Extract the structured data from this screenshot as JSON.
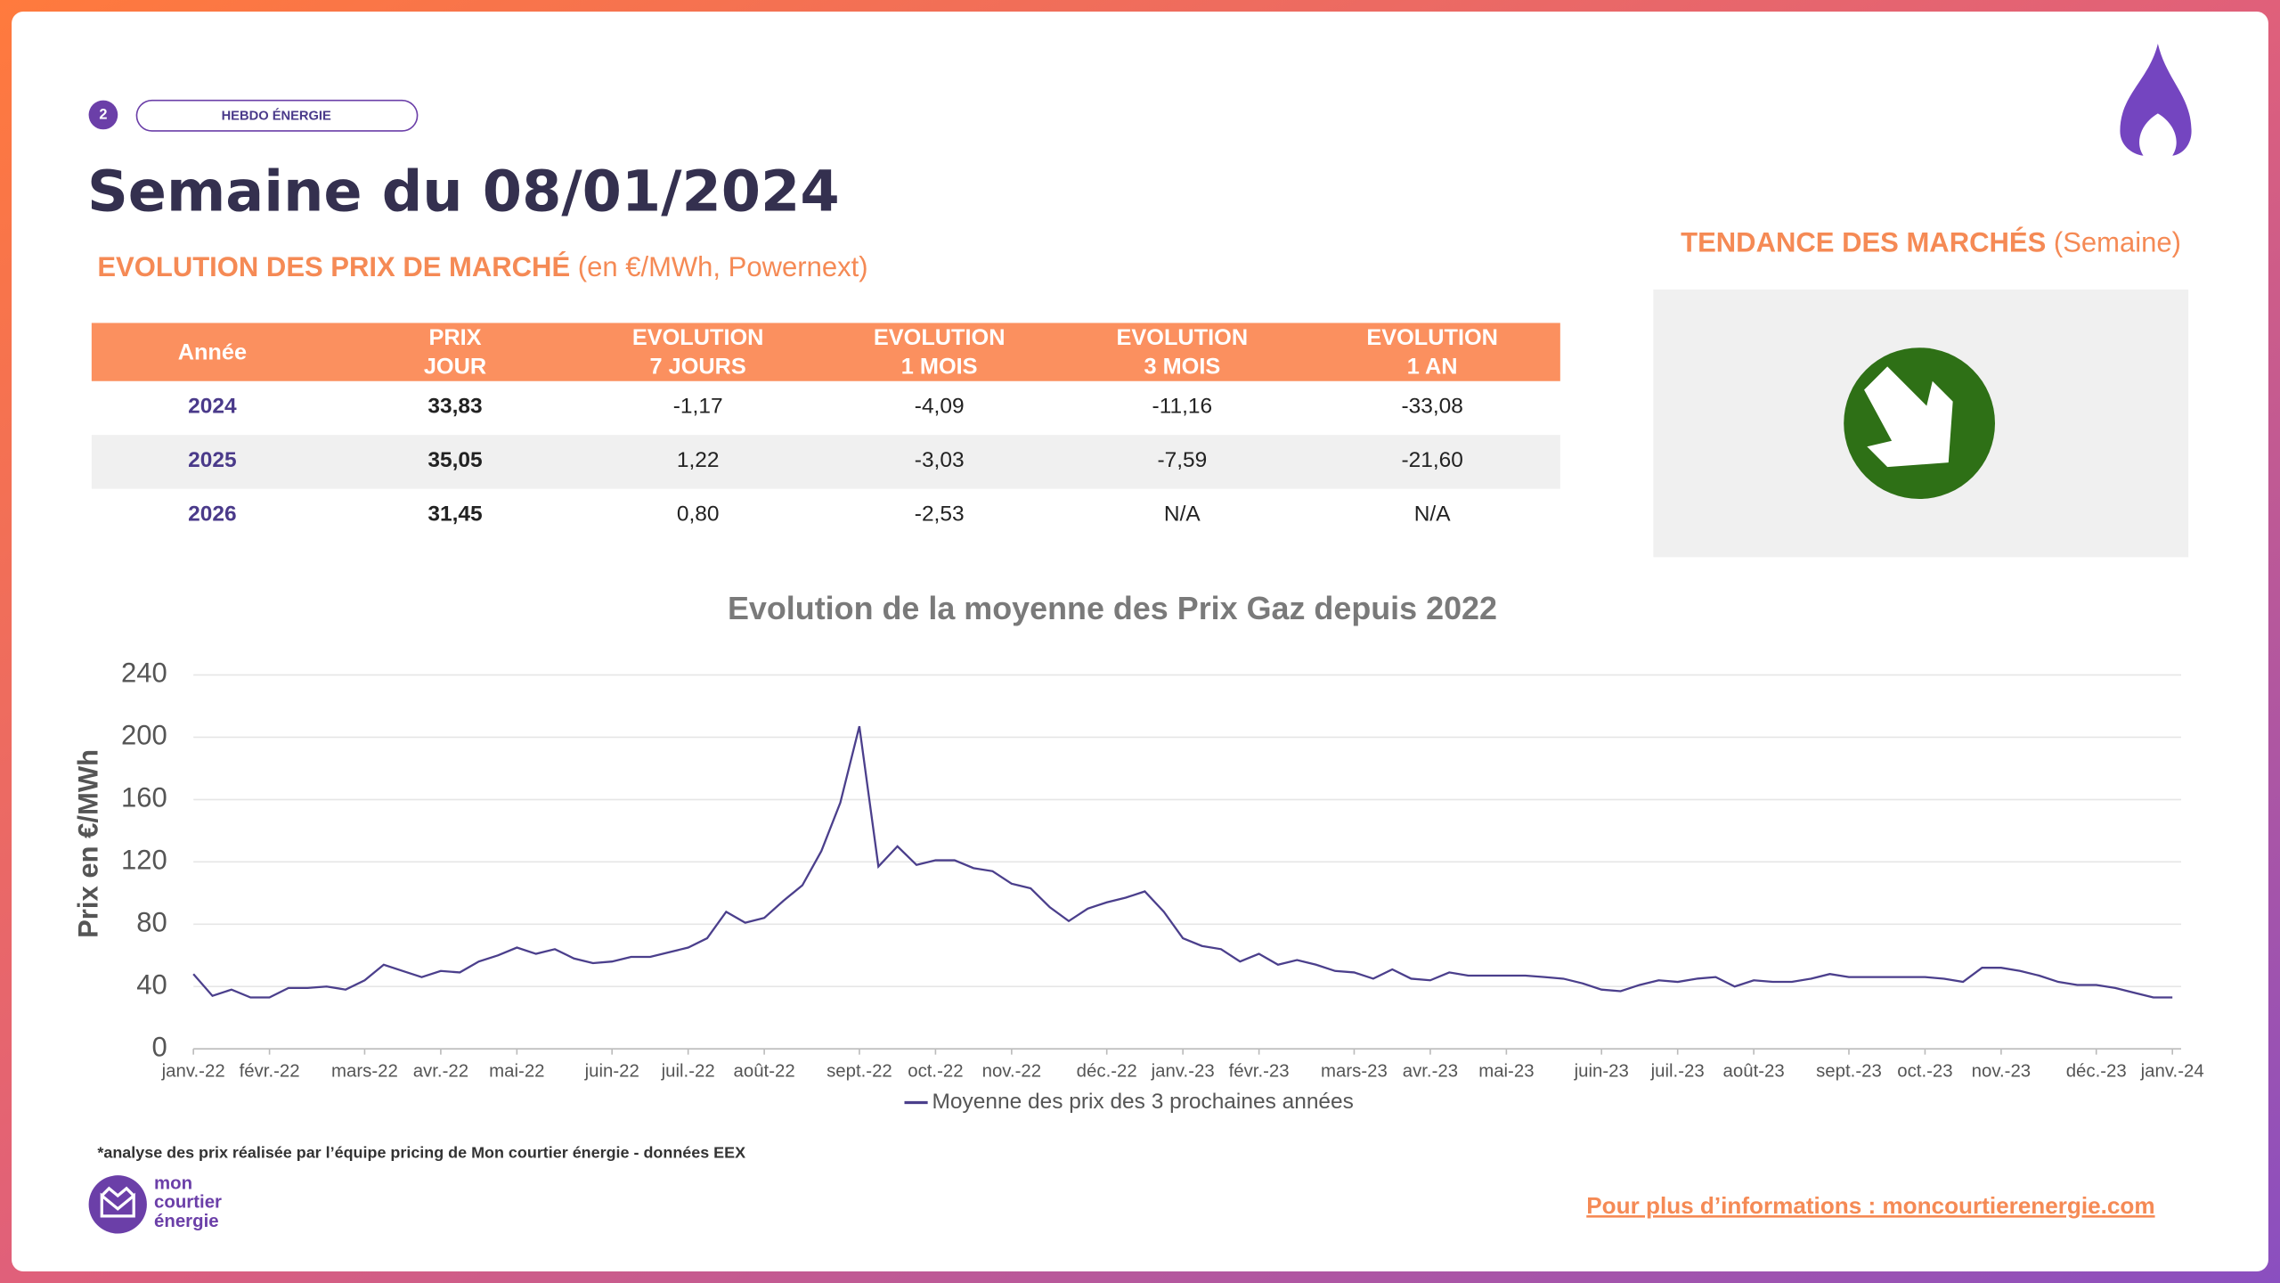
{
  "header": {
    "page_number": "2",
    "tag": "HEBDO ÉNERGIE",
    "title": "Semaine du 08/01/2024"
  },
  "prices": {
    "title": "EVOLUTION DES PRIX DE MARCHÉ",
    "subtitle": "(en €/MWh, Powernext)",
    "table": {
      "columns": [
        [
          "Année"
        ],
        [
          "PRIX",
          "JOUR"
        ],
        [
          "EVOLUTION",
          "7 JOURS"
        ],
        [
          "EVOLUTION",
          "1 MOIS"
        ],
        [
          "EVOLUTION",
          "3 MOIS"
        ],
        [
          "EVOLUTION",
          "1 AN"
        ]
      ],
      "rows": [
        [
          "2024",
          "33,83",
          "-1,17",
          "-4,09",
          "-11,16",
          "-33,08"
        ],
        [
          "2025",
          "35,05",
          "1,22",
          "-3,03",
          "-7,59",
          "-21,60"
        ],
        [
          "2026",
          "31,45",
          "0,80",
          "-2,53",
          "N/A",
          "N/A"
        ]
      ]
    }
  },
  "trend": {
    "title": "TENDANCE DES MARCHÉS",
    "subtitle": "(Semaine)"
  },
  "chart_data": {
    "type": "line",
    "title": "Evolution de la moyenne des Prix Gaz depuis 2022",
    "ylabel": "Prix en €/MWh",
    "categories": [
      "janv.-22",
      null,
      null,
      null,
      "févr.-22",
      null,
      null,
      null,
      null,
      "mars-22",
      null,
      null,
      null,
      "avr.-22",
      null,
      null,
      null,
      "mai-22",
      null,
      null,
      null,
      null,
      "juin-22",
      null,
      null,
      null,
      "juil.-22",
      null,
      null,
      null,
      "août-22",
      null,
      null,
      null,
      null,
      "sept.-22",
      null,
      null,
      null,
      "oct.-22",
      null,
      null,
      null,
      "nov.-22",
      null,
      null,
      null,
      null,
      "déc.-22",
      null,
      null,
      null,
      "janv.-23",
      null,
      null,
      null,
      "févr.-23",
      null,
      null,
      null,
      null,
      "mars-23",
      null,
      null,
      null,
      "avr.-23",
      null,
      null,
      null,
      "mai-23",
      null,
      null,
      null,
      null,
      "juin-23",
      null,
      null,
      null,
      "juil.-23",
      null,
      null,
      null,
      "août-23",
      null,
      null,
      null,
      null,
      "sept.-23",
      null,
      null,
      null,
      "oct.-23",
      null,
      null,
      null,
      "nov.-23",
      null,
      null,
      null,
      null,
      "déc.-23",
      null,
      null,
      null,
      "janv.-24"
    ],
    "series": [
      {
        "name": "Moyenne des prix des 3 prochaines années",
        "color": "#4b3f8c",
        "values": [
          48,
          34,
          38,
          33,
          33,
          39,
          39,
          40,
          38,
          44,
          54,
          50,
          46,
          50,
          49,
          56,
          60,
          65,
          61,
          64,
          58,
          55,
          56,
          59,
          59,
          62,
          65,
          71,
          88,
          81,
          84,
          95,
          105,
          127,
          158,
          207,
          117,
          130,
          118,
          121,
          121,
          116,
          114,
          106,
          103,
          91,
          82,
          90,
          94,
          97,
          101,
          88,
          71,
          66,
          64,
          56,
          61,
          54,
          57,
          54,
          50,
          49,
          45,
          51,
          45,
          44,
          49,
          47,
          47,
          47,
          47,
          46,
          45,
          42,
          38,
          37,
          41,
          44,
          43,
          45,
          46,
          40,
          44,
          43,
          43,
          45,
          48,
          46,
          46,
          46,
          46,
          46,
          45,
          43,
          52,
          52,
          50,
          47,
          43,
          41,
          41,
          39,
          36,
          33,
          33
        ]
      }
    ],
    "ylim": [
      0,
      240
    ],
    "yticks": [
      0,
      40,
      80,
      120,
      160,
      200,
      240
    ],
    "grid": true,
    "legend": "bottom"
  },
  "footer": {
    "note": "*analyse des prix réalisée par l’équipe pricing de Mon courtier énergie -  données EEX",
    "logo": [
      "mon",
      "courtier",
      "énergie"
    ],
    "link": "Pour plus d’informations : moncourtierenergie.com"
  }
}
